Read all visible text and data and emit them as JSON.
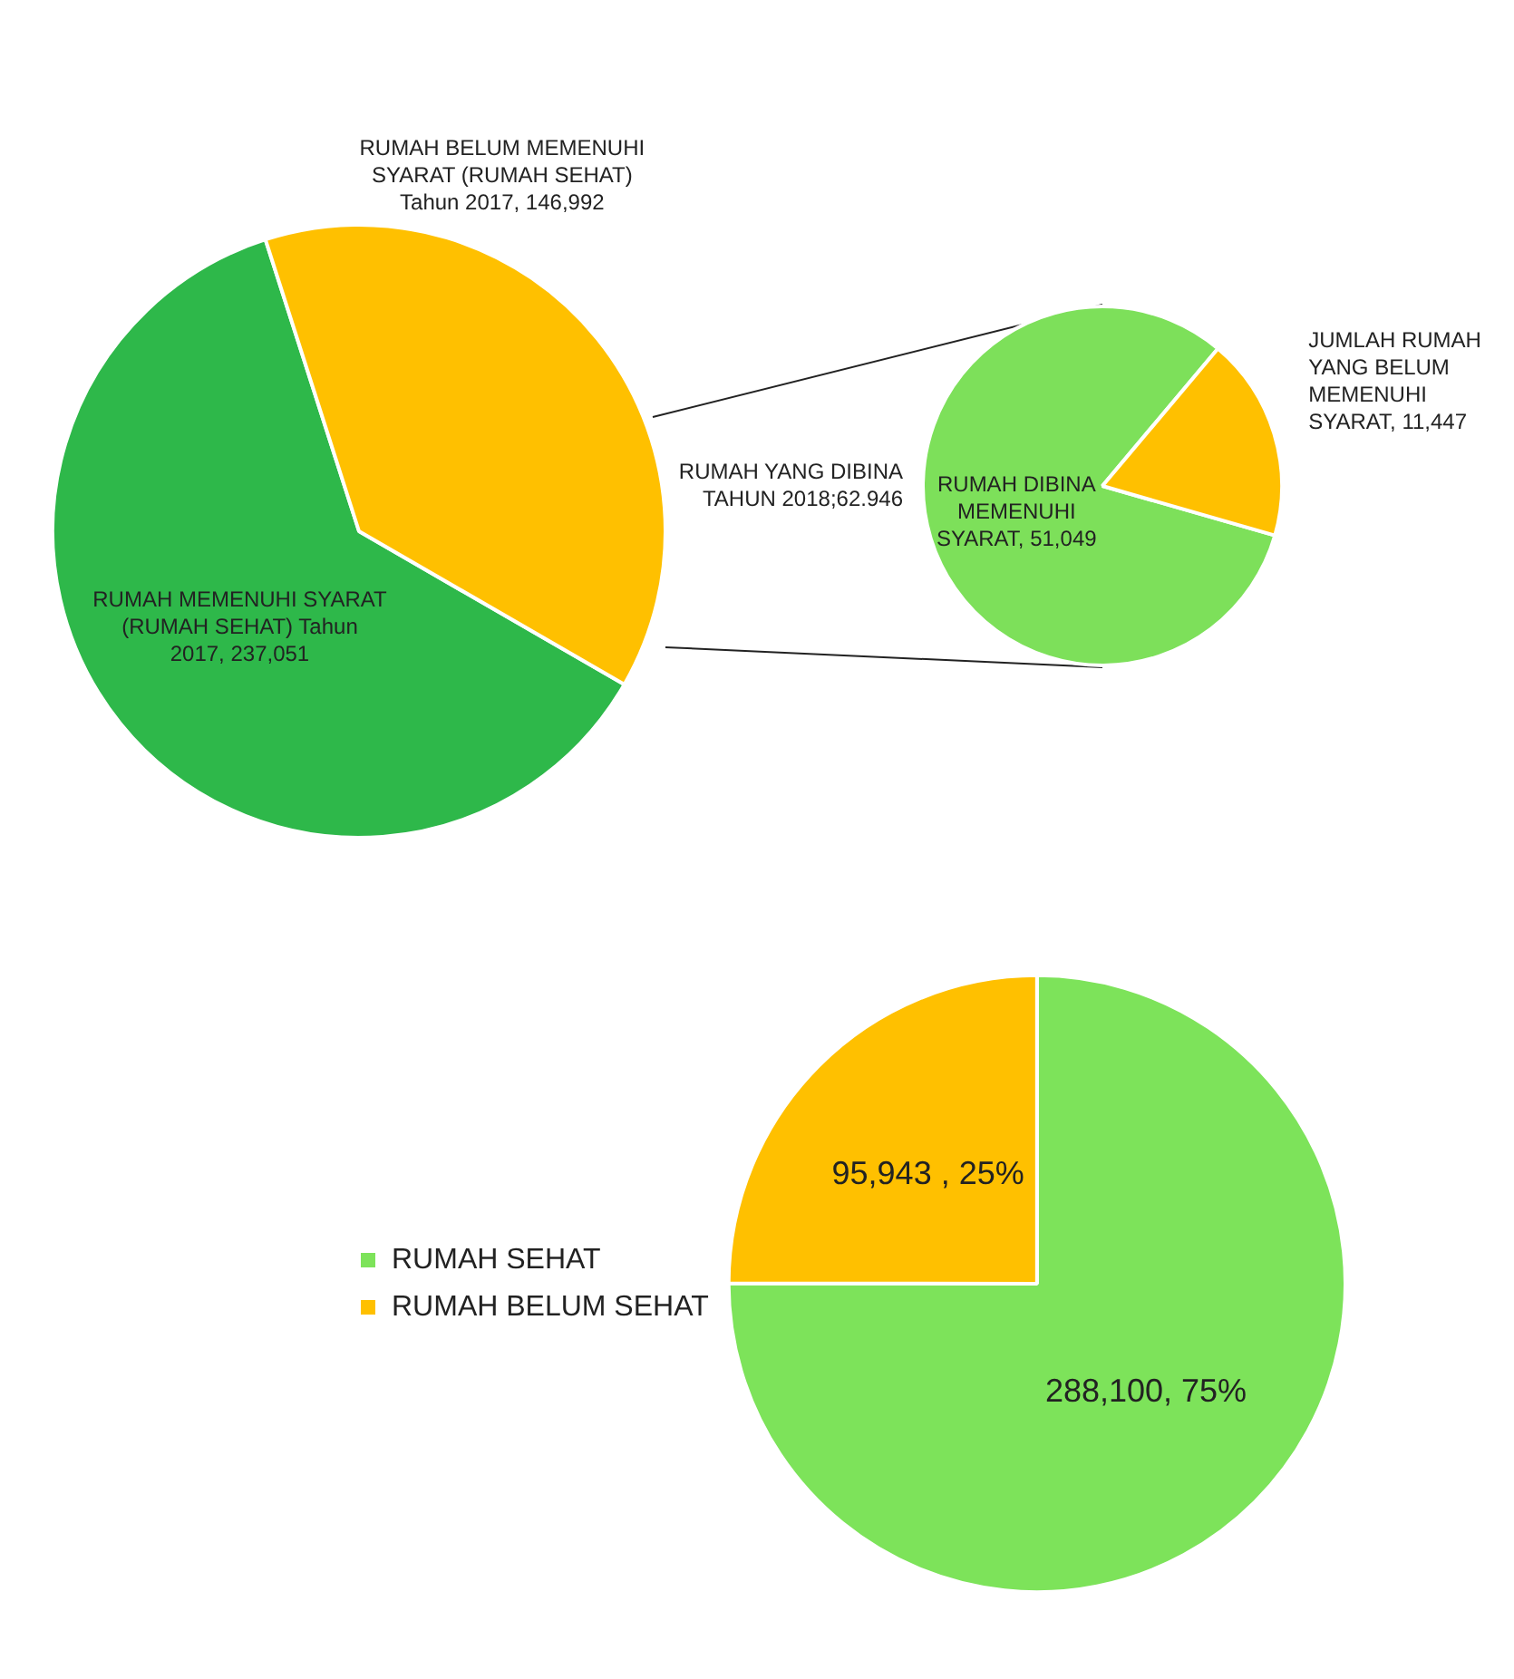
{
  "chart_data": [
    {
      "type": "pie",
      "categories": [
        "RUMAH MEMENUHI SYARAT (RUMAH SEHAT) Tahun 2017",
        "RUMAH BELUM MEMENUHI SYARAT (RUMAH SEHAT) Tahun 2017"
      ],
      "values": [
        237051,
        146992
      ],
      "value_labels": [
        "237,051",
        "146,992"
      ],
      "colors": [
        "#2eb84a",
        "#ffc000"
      ],
      "legend": false
    },
    {
      "type": "pie",
      "title": "RUMAH YANG DIBINA TAHUN 2018;62.946",
      "categories": [
        "RUMAH DIBINA MEMENUHI SYARAT",
        "JUMLAH RUMAH YANG BELUM MEMENUHI SYARAT"
      ],
      "values": [
        51049,
        11447
      ],
      "value_labels": [
        "51,049",
        "11,447"
      ],
      "colors": [
        "#7de05a",
        "#ffc000"
      ],
      "legend": false
    },
    {
      "type": "pie",
      "categories": [
        "RUMAH SEHAT",
        "RUMAH BELUM SEHAT"
      ],
      "values": [
        288100,
        95943
      ],
      "value_labels": [
        "288,100, 75%",
        "95,943 , 25%"
      ],
      "colors": [
        "#7de35a",
        "#ffc000"
      ],
      "legend": "left"
    }
  ]
}
